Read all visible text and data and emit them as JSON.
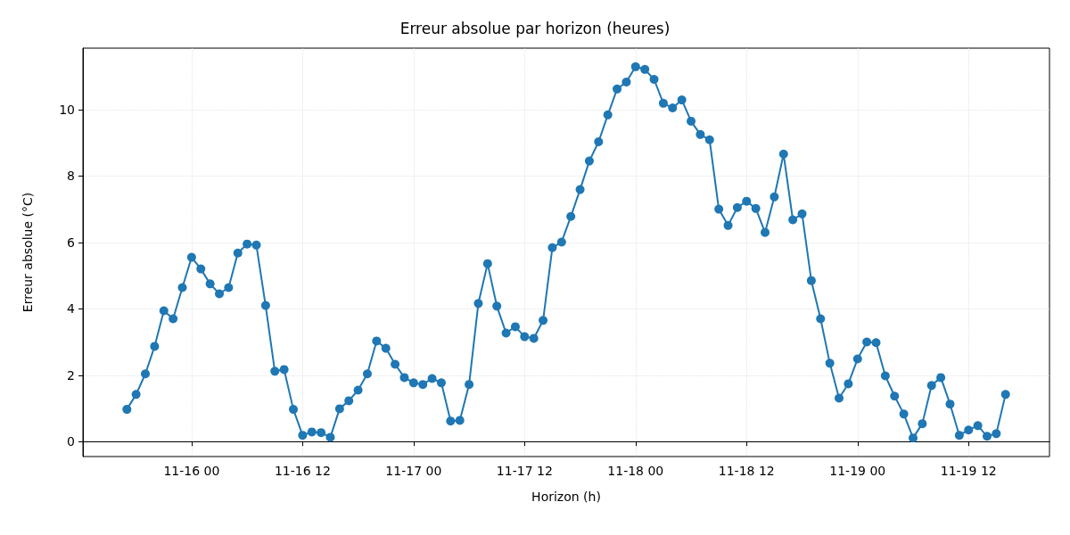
{
  "chart_data": {
    "type": "line",
    "title": "Erreur absolue par horizon (heures)",
    "xlabel": "Horizon (h)",
    "ylabel": "Erreur absolue (°C)",
    "x": [
      "--11-15T17:00",
      "--11-15T18:00",
      "--11-15T19:00",
      "--11-15T20:00",
      "--11-15T21:00",
      "--11-15T22:00",
      "--11-15T23:00",
      "--11-16T00:00",
      "--11-16T01:00",
      "--11-16T02:00",
      "--11-16T03:00",
      "--11-16T04:00",
      "--11-16T05:00",
      "--11-16T06:00",
      "--11-16T07:00",
      "--11-16T08:00",
      "--11-16T09:00",
      "--11-16T10:00",
      "--11-16T11:00",
      "--11-16T12:00",
      "--11-16T13:00",
      "--11-16T14:00",
      "--11-16T15:00",
      "--11-16T16:00",
      "--11-16T17:00",
      "--11-16T18:00",
      "--11-16T19:00",
      "--11-16T20:00",
      "--11-16T21:00",
      "--11-16T22:00",
      "--11-16T23:00",
      "--11-17T00:00",
      "--11-17T01:00",
      "--11-17T02:00",
      "--11-17T03:00",
      "--11-17T04:00",
      "--11-17T05:00",
      "--11-17T06:00",
      "--11-17T07:00",
      "--11-17T08:00",
      "--11-17T09:00",
      "--11-17T10:00",
      "--11-17T11:00",
      "--11-17T12:00",
      "--11-17T13:00",
      "--11-17T14:00",
      "--11-17T15:00",
      "--11-17T16:00",
      "--11-17T17:00",
      "--11-17T18:00",
      "--11-17T19:00",
      "--11-17T20:00",
      "--11-17T21:00",
      "--11-17T22:00",
      "--11-17T23:00",
      "--11-18T00:00",
      "--11-18T01:00",
      "--11-18T02:00",
      "--11-18T03:00",
      "--11-18T04:00",
      "--11-18T05:00",
      "--11-18T06:00",
      "--11-18T07:00",
      "--11-18T08:00",
      "--11-18T09:00",
      "--11-18T10:00",
      "--11-18T11:00",
      "--11-18T12:00",
      "--11-18T13:00",
      "--11-18T14:00",
      "--11-18T15:00",
      "--11-18T16:00",
      "--11-18T17:00",
      "--11-18T18:00",
      "--11-18T19:00",
      "--11-18T20:00",
      "--11-18T21:00",
      "--11-18T22:00",
      "--11-18T23:00",
      "--11-19T00:00",
      "--11-19T01:00",
      "--11-19T02:00",
      "--11-19T03:00",
      "--11-19T04:00",
      "--11-19T05:00",
      "--11-19T06:00",
      "--11-19T07:00",
      "--11-19T08:00",
      "--11-19T09:00",
      "--11-19T10:00",
      "--11-19T11:00",
      "--11-19T12:00",
      "--11-19T13:00",
      "--11-19T14:00",
      "--11-19T15:00",
      "--11-19T16:00"
    ],
    "series": [
      {
        "color": "#1f77b4",
        "values": [
          0.97,
          1.42,
          2.04,
          2.87,
          3.94,
          3.7,
          4.64,
          5.55,
          5.2,
          4.75,
          4.45,
          4.64,
          5.68,
          5.95,
          5.92,
          4.1,
          2.12,
          2.17,
          0.97,
          0.19,
          0.29,
          0.27,
          0.13,
          0.99,
          1.23,
          1.55,
          2.04,
          3.03,
          2.81,
          2.33,
          1.93,
          1.77,
          1.72,
          1.9,
          1.77,
          0.62,
          0.64,
          1.72,
          4.16,
          5.36,
          4.08,
          3.27,
          3.46,
          3.16,
          3.11,
          3.65,
          5.84,
          6.01,
          6.78,
          7.59,
          8.45,
          9.03,
          9.84,
          10.62,
          10.83,
          11.29,
          11.21,
          10.91,
          10.19,
          10.05,
          10.29,
          9.65,
          9.25,
          9.09,
          7.0,
          6.51,
          7.05,
          7.24,
          7.02,
          6.3,
          7.37,
          8.66,
          6.68,
          6.86,
          4.85,
          3.7,
          2.36,
          1.31,
          1.74,
          2.49,
          3.0,
          2.98,
          1.98,
          1.37,
          0.83,
          0.11,
          0.54,
          1.69,
          1.93,
          1.13,
          0.19,
          0.35,
          0.48,
          0.16,
          0.24,
          1.42
        ]
      }
    ],
    "xlim": [
      "--11-15T12:15",
      "--11-19T20:45"
    ],
    "xticks": [
      {
        "value": "--11-16T00:00",
        "label": "11-16 00"
      },
      {
        "value": "--11-16T12:00",
        "label": "11-16 12"
      },
      {
        "value": "--11-17T00:00",
        "label": "11-17 00"
      },
      {
        "value": "--11-17T12:00",
        "label": "11-17 12"
      },
      {
        "value": "--11-18T00:00",
        "label": "11-18 00"
      },
      {
        "value": "--11-18T12:00",
        "label": "11-18 12"
      },
      {
        "value": "--11-19T00:00",
        "label": "11-19 00"
      },
      {
        "value": "--11-19T12:00",
        "label": "11-19 12"
      }
    ],
    "ylim": [
      -0.45,
      11.85
    ],
    "yticks": [
      0,
      2,
      4,
      6,
      8,
      10
    ],
    "grid": true,
    "marker": "circle",
    "line_style": "solid"
  }
}
